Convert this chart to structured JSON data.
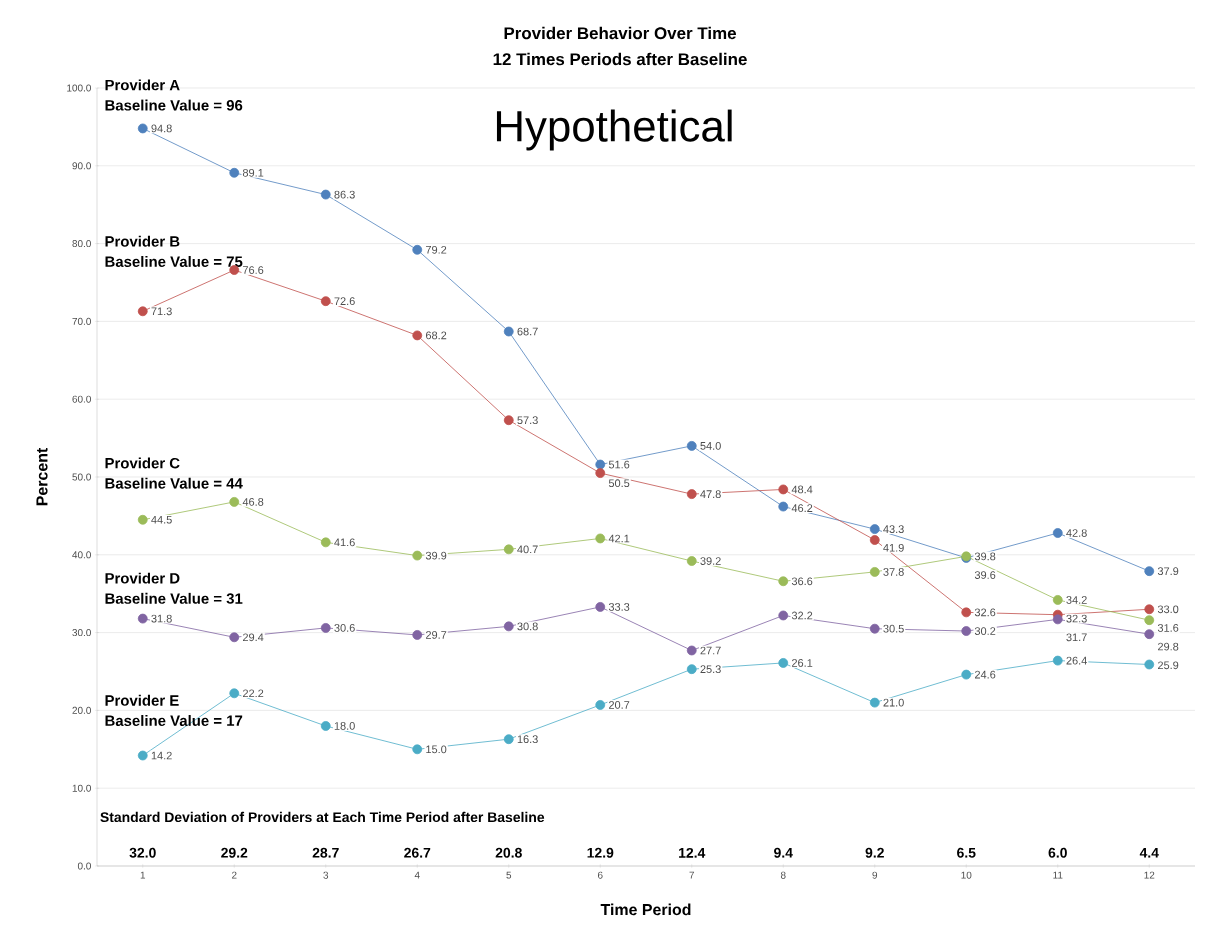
{
  "chart_data": {
    "type": "line",
    "title": "Provider Behavior Over Time",
    "subtitle": "12 Times Periods after Baseline",
    "xlabel": "Time Period",
    "ylabel": "Percent",
    "categories": [
      "1",
      "2",
      "3",
      "4",
      "5",
      "6",
      "7",
      "8",
      "9",
      "10",
      "11",
      "12"
    ],
    "series": [
      {
        "color": "#4f81bd",
        "values": [
          94.8,
          89.1,
          86.3,
          79.2,
          68.7,
          51.6,
          54.0,
          46.2,
          43.3,
          39.6,
          42.8,
          37.9
        ],
        "value_labels": [
          "94.8",
          "89.1",
          "86.3",
          "79.2",
          "68.7",
          "51.6",
          "54.0",
          "46.2",
          "43.3",
          "39.6",
          "42.8",
          "37.9"
        ]
      },
      {
        "color": "#c0504d",
        "values": [
          71.3,
          76.6,
          72.6,
          68.2,
          57.3,
          50.5,
          47.8,
          48.4,
          41.9,
          32.6,
          32.3,
          33.0
        ],
        "value_labels": [
          "71.3",
          "76.6",
          "72.6",
          "68.2",
          "57.3",
          "50.5",
          "47.8",
          "48.4",
          "41.9",
          "32.6",
          "32.3",
          "33.0"
        ]
      },
      {
        "color": "#9bbb59",
        "values": [
          44.5,
          46.8,
          41.6,
          39.9,
          40.7,
          42.1,
          39.2,
          36.6,
          37.8,
          39.8,
          34.2,
          31.6
        ],
        "value_labels": [
          "44.5",
          "46.8",
          "41.6",
          "39.9",
          "40.7",
          "42.1",
          "39.2",
          "36.6",
          "37.8",
          "39.8",
          "34.2",
          "31.6"
        ]
      },
      {
        "color": "#8064a2",
        "values": [
          31.8,
          29.4,
          30.6,
          29.7,
          30.8,
          33.3,
          27.7,
          32.2,
          30.5,
          30.2,
          31.7,
          29.8
        ],
        "value_labels": [
          "31.8",
          "29.4",
          "30.6",
          "29.7",
          "30.8",
          "33.3",
          "27.7",
          "32.2",
          "30.5",
          "30.2",
          "31.7",
          "29.8"
        ]
      },
      {
        "color": "#4bacc6",
        "values": [
          14.2,
          22.2,
          18.0,
          15.0,
          16.3,
          20.7,
          25.3,
          26.1,
          21.0,
          24.6,
          26.4,
          25.9
        ],
        "value_labels": [
          "14.2",
          "22.2",
          "18.0",
          "15.0",
          "16.3",
          "20.7",
          "25.3",
          "26.1",
          "21.0",
          "24.6",
          "26.4",
          "25.9"
        ]
      }
    ],
    "ylim": [
      0,
      100
    ],
    "yticks": [
      {
        "value": 0,
        "label": "0.0"
      },
      {
        "value": 10,
        "label": "10.0"
      },
      {
        "value": 20,
        "label": "20.0"
      },
      {
        "value": 30,
        "label": "30.0"
      },
      {
        "value": 40,
        "label": "40.0"
      },
      {
        "value": 50,
        "label": "50.0"
      },
      {
        "value": 60,
        "label": "60.0"
      },
      {
        "value": 70,
        "label": "70.0"
      },
      {
        "value": 80,
        "label": "80.0"
      },
      {
        "value": 90,
        "label": "90.0"
      },
      {
        "value": 100,
        "label": "100.0"
      }
    ],
    "grid": "y",
    "marker": "circle",
    "line_style": "solid",
    "annotations": [
      "Provider A",
      "Baseline Value = 96",
      "Provider B",
      "Baseline Value = 75",
      "Provider C",
      "Baseline Value = 44",
      "Provider D",
      "Baseline Value = 31",
      "Provider E",
      "Baseline Value = 17",
      "Hypothetical",
      "Standard Deviation of Providers at Each Time Period after Baseline",
      "32.0",
      "29.2",
      "28.7",
      "26.7",
      "20.8",
      "12.9",
      "12.4",
      "9.4",
      "9.2",
      "6.5",
      "6.0",
      "4.4"
    ]
  }
}
